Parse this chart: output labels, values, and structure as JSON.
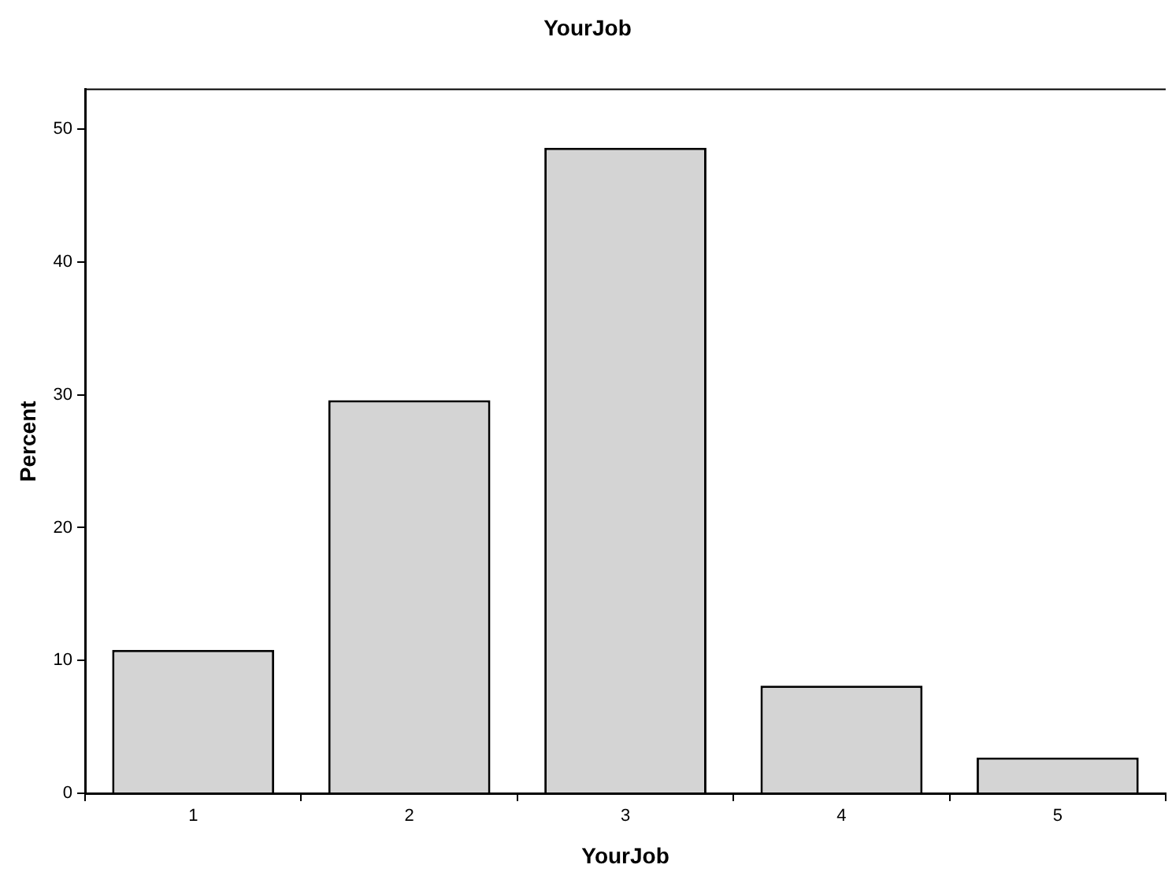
{
  "chart_data": {
    "type": "bar",
    "title": "YourJob",
    "xlabel": "YourJob",
    "ylabel": "Percent",
    "categories": [
      "1",
      "2",
      "3",
      "4",
      "5"
    ],
    "values": [
      10.8,
      29.6,
      48.6,
      8.1,
      2.7
    ],
    "color": "#d4d4d4",
    "ylim": [
      0,
      53
    ],
    "yticks": [
      0,
      10,
      20,
      30,
      40,
      50
    ],
    "grid": false,
    "legend": false
  }
}
